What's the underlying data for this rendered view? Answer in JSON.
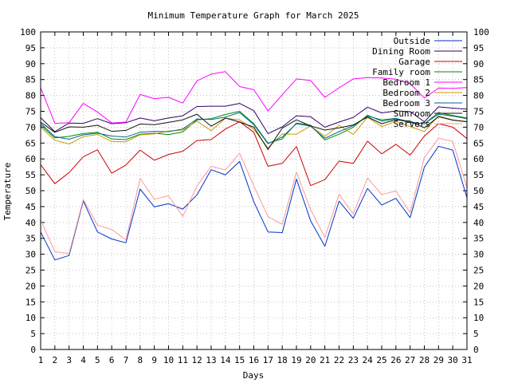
{
  "chart_data": {
    "type": "line",
    "title": "Minimum Temperature Graph for March 2025",
    "xlabel": "Days",
    "ylabel": "Temperature",
    "xlim": [
      1,
      31
    ],
    "ylim": [
      0,
      100
    ],
    "grid": true,
    "legend_position": "top-right",
    "x": [
      1,
      2,
      3,
      4,
      5,
      6,
      7,
      8,
      9,
      10,
      11,
      12,
      13,
      14,
      15,
      16,
      17,
      18,
      19,
      20,
      21,
      22,
      23,
      24,
      25,
      26,
      27,
      28,
      29,
      30,
      31
    ],
    "x_ticks": [
      "1",
      "2",
      "3",
      "4",
      "5",
      "6",
      "7",
      "8",
      "9",
      "10",
      "11",
      "12",
      "13",
      "14",
      "15",
      "16",
      "17",
      "18",
      "19",
      "20",
      "21",
      "22",
      "23",
      "24",
      "25",
      "26",
      "27",
      "28",
      "29",
      "30",
      "31"
    ],
    "y_ticks": [
      "0",
      "5",
      "10",
      "15",
      "20",
      "25",
      "30",
      "35",
      "40",
      "45",
      "50",
      "55",
      "60",
      "65",
      "70",
      "75",
      "80",
      "85",
      "90",
      "95",
      "100"
    ],
    "series": [
      {
        "name": "Outside",
        "color": "#0033cc",
        "values": [
          37,
          28.2,
          29.6,
          46.8,
          37,
          34.8,
          33.6,
          50.5,
          44.9,
          45.9,
          44.2,
          48.7,
          56.6,
          55,
          59.2,
          46.5,
          37,
          36.8,
          53.7,
          40.5,
          32.5,
          46.7,
          41.3,
          50.7,
          45.5,
          47.6,
          41.5,
          57.4,
          64,
          62.8,
          47.8
        ]
      },
      {
        "name": "Dining Room",
        "color": "#330066",
        "values": [
          73,
          68.6,
          71.3,
          71.2,
          72.7,
          71.1,
          71.4,
          72.9,
          72,
          72.9,
          73.6,
          76.5,
          76.6,
          76.6,
          77.5,
          75.2,
          68,
          70.1,
          73.6,
          73.3,
          70,
          71.6,
          73.1,
          76.3,
          74.5,
          75.1,
          74.9,
          71.7,
          76.4,
          76,
          75.7
        ]
      },
      {
        "name": "Garage",
        "color": "#cc0000",
        "values": [
          58.2,
          52.2,
          55.7,
          60.7,
          62.9,
          55.5,
          58.1,
          62.8,
          59.6,
          61.4,
          62.4,
          65.8,
          66.1,
          69.4,
          71.7,
          68.4,
          57.7,
          58.6,
          63.9,
          51.6,
          53.5,
          59.3,
          58.6,
          65.6,
          61.6,
          64.6,
          61.2,
          67.2,
          71.1,
          70,
          66.4
        ]
      },
      {
        "name": "Family room",
        "color": "#008800",
        "values": [
          70.6,
          66.6,
          67.1,
          68,
          68.4,
          66.3,
          66.1,
          67.8,
          68.1,
          67.7,
          68.5,
          72.3,
          72.7,
          74,
          75,
          71.1,
          65,
          66.3,
          71.3,
          70.6,
          66,
          67.8,
          70,
          73.8,
          71.9,
          72.6,
          71.4,
          71.1,
          74.6,
          73.7,
          72.9
        ]
      },
      {
        "name": "Bedroom 1",
        "color": "#ff00ff",
        "values": [
          82.4,
          71.2,
          71.4,
          77.5,
          74.8,
          71.3,
          71.6,
          80.3,
          79,
          79.4,
          77.6,
          84.6,
          86.7,
          87.5,
          82.8,
          81.8,
          75.1,
          80.2,
          85.2,
          84.7,
          79.4,
          82.4,
          85.2,
          85.6,
          85.5,
          85.1,
          83.7,
          79.2,
          82.3,
          82.2,
          82.5
        ]
      },
      {
        "name": "Bedroom 2",
        "color": "#cc9900",
        "values": [
          70,
          65.9,
          64.7,
          67,
          67.7,
          65.5,
          65.4,
          67.6,
          67.9,
          68.8,
          69.1,
          71.9,
          68.9,
          72.8,
          72.3,
          69.3,
          63.5,
          67.9,
          67.8,
          70.4,
          67.1,
          70.6,
          67.7,
          73.1,
          70.2,
          71.8,
          70.2,
          68.6,
          73.6,
          72.3,
          71.8
        ]
      },
      {
        "name": "Bedroom 3",
        "color": "#006699",
        "values": [
          71.2,
          67,
          66.2,
          67.6,
          68.1,
          67.2,
          66.9,
          68.4,
          68.7,
          68.6,
          69.4,
          72.6,
          72.4,
          73.2,
          74.6,
          70.8,
          64.8,
          66.9,
          71.1,
          70.3,
          66.5,
          68.6,
          70.5,
          73.5,
          72.3,
          72.8,
          71.6,
          71.1,
          74.1,
          73.5,
          72.7
        ]
      },
      {
        "name": "Sunroom",
        "color": "#111111",
        "values": [
          71.6,
          68.4,
          70.1,
          70,
          70.6,
          68.7,
          69,
          71,
          70.8,
          71.5,
          72.3,
          74.1,
          70.3,
          72.9,
          71.6,
          70,
          63,
          69.7,
          72.3,
          70.4,
          69.1,
          69.8,
          70.7,
          73.2,
          71.1,
          72.3,
          71.9,
          69.8,
          73.3,
          72.2,
          71.7
        ]
      },
      {
        "name": "Servers",
        "color": "#ff9999",
        "values": [
          40.8,
          30.8,
          30.2,
          47.2,
          39.2,
          37.8,
          34.5,
          53.9,
          47.3,
          48.4,
          41.9,
          51.5,
          57.7,
          56.5,
          61.8,
          51.5,
          41.8,
          39.4,
          55.9,
          44,
          35.3,
          48.9,
          42.7,
          54,
          48.8,
          49.9,
          43.1,
          60.4,
          66.5,
          65.5,
          51
        ]
      }
    ]
  }
}
